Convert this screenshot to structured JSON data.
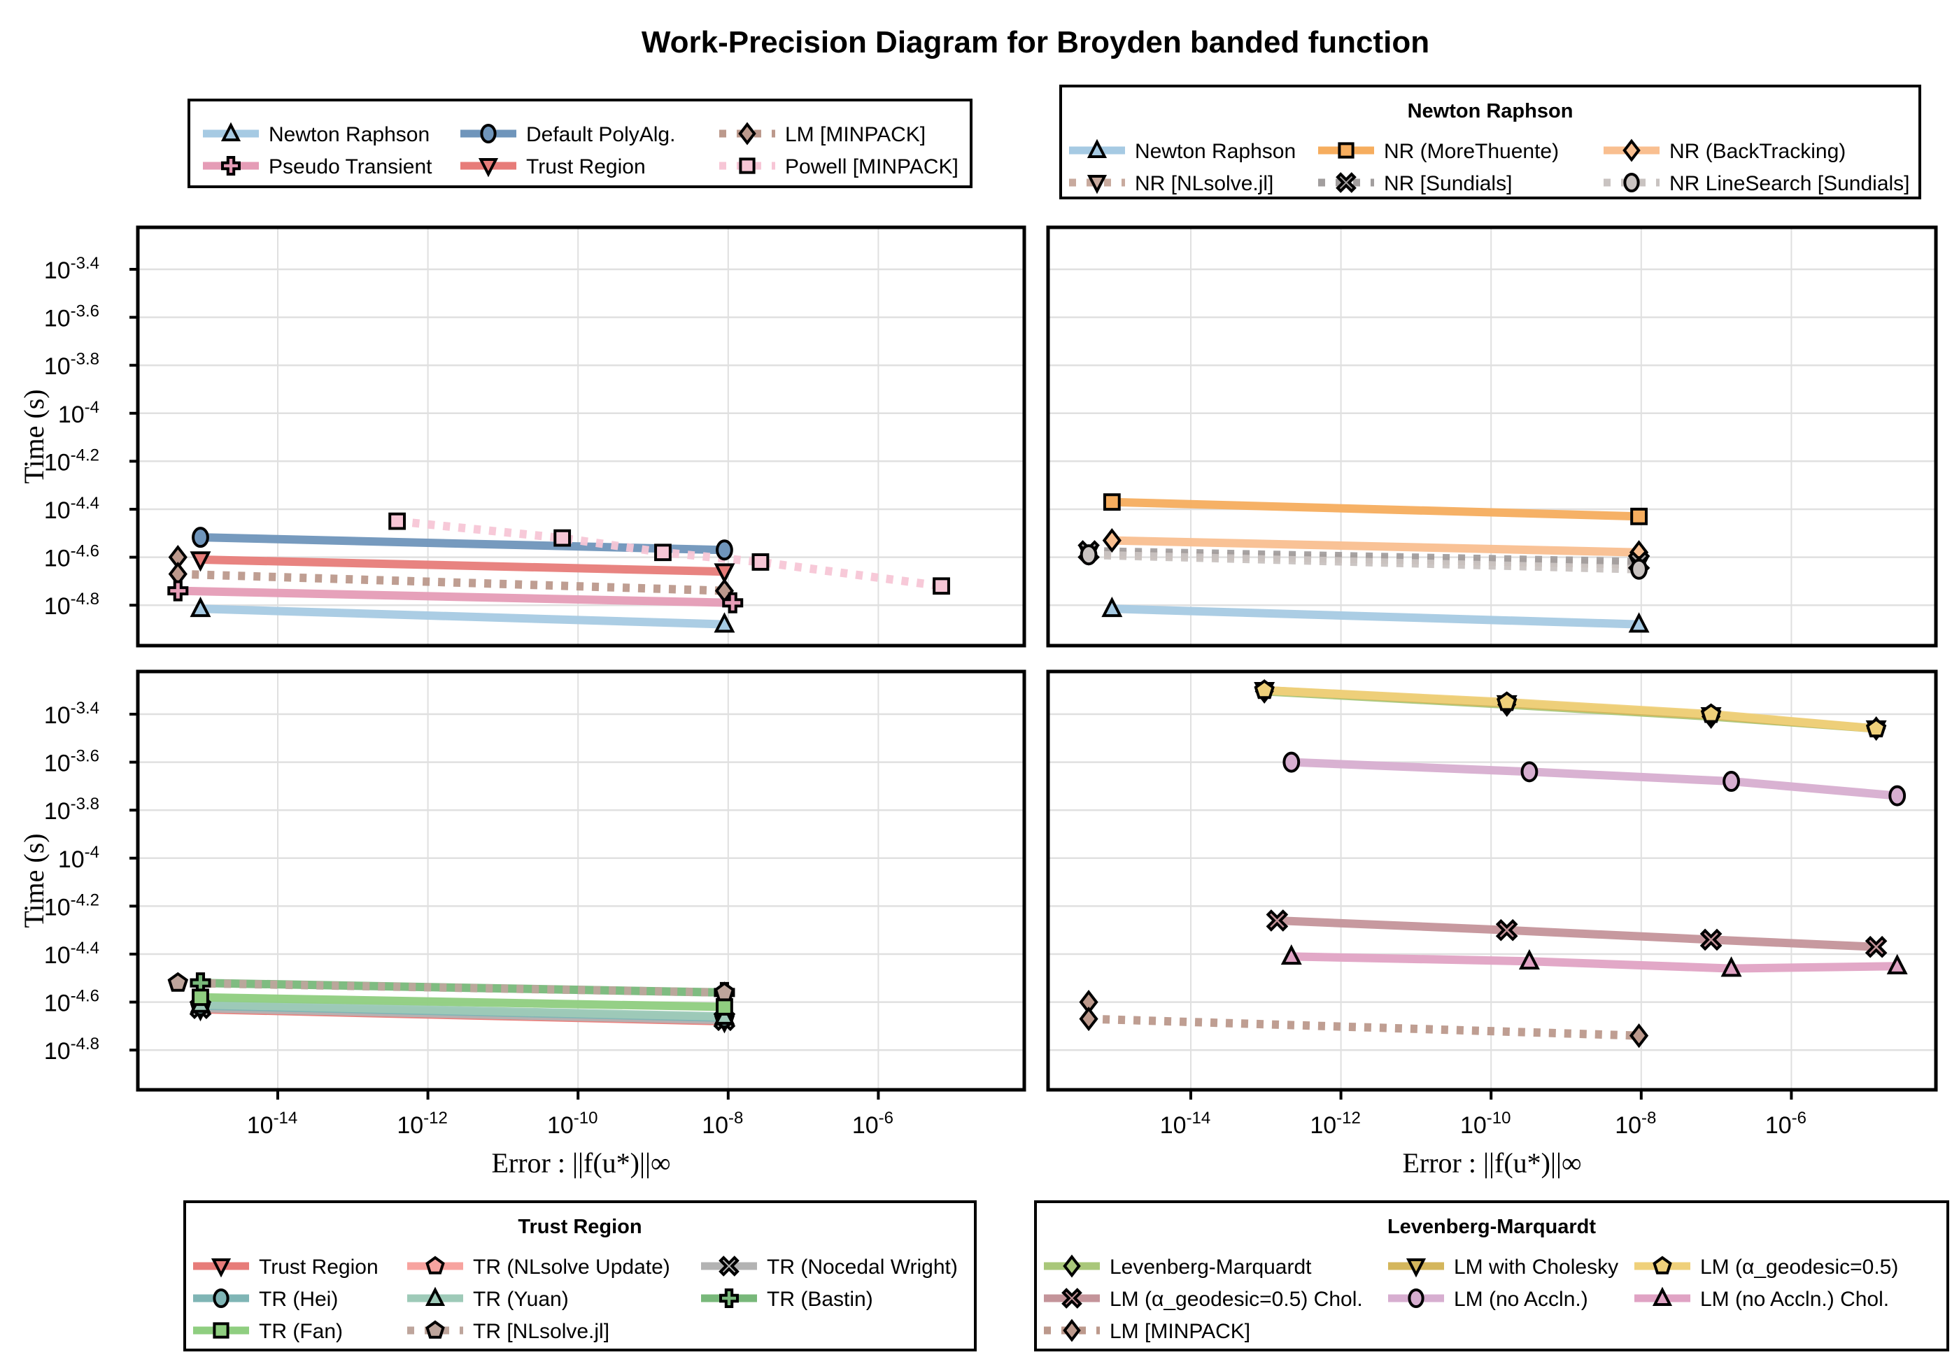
{
  "chart_data": {
    "type": "line",
    "title": "Work-Precision Diagram for Broyden banded function",
    "xscale": "log10",
    "yscale": "log10",
    "xlabel": "Error : ||f(u*)||∞",
    "ylabel": "Time (s)",
    "xticks": [
      -14,
      -12,
      -10,
      -8,
      -6
    ],
    "yticks": [
      -3.4,
      -3.6,
      -3.8,
      -4,
      -4.2,
      -4.4,
      -4.6,
      -4.8
    ],
    "xlim_log10": [
      -15.9,
      -4.07
    ],
    "ylim_log10": [
      -4.98,
      -3.22
    ],
    "grid": true,
    "panels": [
      {
        "id": "top-left",
        "legend": {
          "title": "",
          "position": "above",
          "columns": 3
        },
        "series": [
          {
            "name": "Newton Raphson",
            "color": "#a6cae3",
            "marker": "triangle-up",
            "dash": "solid",
            "x": [
              -15.03,
              -8.05
            ],
            "y": [
              -4.815,
              -4.88
            ]
          },
          {
            "name": "Default PolyAlg.",
            "color": "#6f95bb",
            "marker": "circle",
            "dash": "solid",
            "x": [
              -15.03,
              -8.05
            ],
            "y": [
              -4.517,
              -4.57
            ]
          },
          {
            "name": "LM [MINPACK]",
            "color": "#bc998c",
            "marker": "diamond",
            "dash": "dot",
            "x": [
              -15.33,
              -15.33,
              -8.05
            ],
            "y": [
              -4.6,
              -4.67,
              -4.74
            ]
          },
          {
            "name": "Pseudo Transient",
            "color": "#e59cb6",
            "marker": "cross",
            "dash": "solid",
            "x": [
              -15.33,
              -7.94
            ],
            "y": [
              -4.74,
              -4.79
            ]
          },
          {
            "name": "Trust Region",
            "color": "#e77c79",
            "marker": "triangle-down",
            "dash": "solid",
            "x": [
              -15.03,
              -8.05
            ],
            "y": [
              -4.61,
              -4.66
            ]
          },
          {
            "name": "Powell [MINPACK]",
            "color": "#f7c6d6",
            "marker": "square",
            "dash": "dot",
            "x": [
              -12.41,
              -10.21,
              -8.87,
              -7.57,
              -5.16
            ],
            "y": [
              -4.45,
              -4.52,
              -4.58,
              -4.62,
              -4.72
            ]
          }
        ]
      },
      {
        "id": "top-right",
        "legend": {
          "title": "Newton Raphson",
          "position": "above",
          "columns": 3
        },
        "series": [
          {
            "name": "Newton Raphson",
            "color": "#a6cae3",
            "marker": "triangle-up",
            "dash": "solid",
            "x": [
              -15.05,
              -8.03
            ],
            "y": [
              -4.815,
              -4.88
            ]
          },
          {
            "name": "NR (MoreThuente)",
            "color": "#f6ad5e",
            "marker": "square",
            "dash": "solid",
            "x": [
              -15.05,
              -8.03
            ],
            "y": [
              -4.37,
              -4.43
            ]
          },
          {
            "name": "NR (BackTracking)",
            "color": "#f9bf90",
            "marker": "diamond",
            "dash": "solid",
            "x": [
              -15.05,
              -8.03
            ],
            "y": [
              -4.53,
              -4.58
            ]
          },
          {
            "name": "NR [NLsolve.jl]",
            "color": "#c8aa9e",
            "marker": "triangle-down",
            "dash": "dot",
            "x": [
              -15.36,
              -8.03
            ],
            "y": [
              -4.585,
              -4.63
            ]
          },
          {
            "name": "NR [Sundials]",
            "color": "#a29e9e",
            "marker": "x-cross",
            "dash": "dot",
            "x": [
              -15.36,
              -8.03
            ],
            "y": [
              -4.575,
              -4.62
            ]
          },
          {
            "name": "NR LineSearch [Sundials]",
            "color": "#c9c3c1",
            "marker": "circle",
            "dash": "dot",
            "x": [
              -15.36,
              -8.03
            ],
            "y": [
              -4.59,
              -4.65
            ]
          }
        ]
      },
      {
        "id": "bottom-left",
        "legend": {
          "title": "Trust Region",
          "position": "below",
          "columns": 3
        },
        "series": [
          {
            "name": "Trust Region",
            "color": "#e77c79",
            "marker": "triangle-down",
            "dash": "solid",
            "x": [
              -15.03,
              -8.05
            ],
            "y": [
              -4.63,
              -4.68
            ]
          },
          {
            "name": "TR (NLsolve Update)",
            "color": "#f7a39f",
            "marker": "pentagon",
            "dash": "solid",
            "x": [
              -15.03,
              -8.05
            ],
            "y": [
              -4.62,
              -4.67
            ]
          },
          {
            "name": "TR (Nocedal Wright)",
            "color": "#b3b3b3",
            "marker": "x-cross",
            "dash": "solid",
            "x": [
              -15.03,
              -8.05
            ],
            "y": [
              -4.625,
              -4.675
            ]
          },
          {
            "name": "TR (Hei)",
            "color": "#7fb5b5",
            "marker": "circle",
            "dash": "solid",
            "x": [
              -15.03,
              -8.05
            ],
            "y": [
              -4.615,
              -4.665
            ]
          },
          {
            "name": "TR (Yuan)",
            "color": "#9ecab8",
            "marker": "triangle-up",
            "dash": "solid",
            "x": [
              -15.03,
              -8.05
            ],
            "y": [
              -4.61,
              -4.66
            ]
          },
          {
            "name": "TR (Bastin)",
            "color": "#78b87a",
            "marker": "cross",
            "dash": "solid",
            "x": [
              -15.03,
              -8.05
            ],
            "y": [
              -4.52,
              -4.56
            ]
          },
          {
            "name": "TR (Fan)",
            "color": "#8fce80",
            "marker": "square",
            "dash": "solid",
            "x": [
              -15.03,
              -8.05
            ],
            "y": [
              -4.58,
              -4.62
            ]
          },
          {
            "name": "TR [NLsolve.jl]",
            "color": "#bea59c",
            "marker": "pentagon",
            "dash": "dot",
            "x": [
              -15.33,
              -8.05
            ],
            "y": [
              -4.52,
              -4.56
            ]
          }
        ]
      },
      {
        "id": "bottom-right",
        "legend": {
          "title": "Levenberg-Marquardt",
          "position": "below",
          "columns": 3
        },
        "series": [
          {
            "name": "Levenberg-Marquardt",
            "color": "#a9c77a",
            "marker": "diamond",
            "dash": "solid",
            "x": [
              -13.02,
              -9.79,
              -7.07,
              -4.87
            ],
            "y": [
              -3.305,
              -3.36,
              -3.41,
              -3.46
            ]
          },
          {
            "name": "LM with Cholesky",
            "color": "#d4b65c",
            "marker": "triangle-down",
            "dash": "solid",
            "x": [
              -13.02,
              -9.79,
              -7.07,
              -4.87
            ],
            "y": [
              -3.3,
              -3.355,
              -3.405,
              -3.46
            ]
          },
          {
            "name": "LM (α_geodesic=0.5)",
            "color": "#efd07a",
            "marker": "pentagon",
            "dash": "solid",
            "x": [
              -13.02,
              -9.79,
              -7.07,
              -4.87
            ],
            "y": [
              -3.3,
              -3.35,
              -3.4,
              -3.46
            ]
          },
          {
            "name": "LM (α_geodesic=0.5) Chol.",
            "color": "#c4949a",
            "marker": "x-cross",
            "dash": "solid",
            "x": [
              -12.85,
              -9.79,
              -7.07,
              -4.87
            ],
            "y": [
              -4.26,
              -4.3,
              -4.34,
              -4.37
            ]
          },
          {
            "name": "LM (no Accln.)",
            "color": "#d7aed0",
            "marker": "circle",
            "dash": "solid",
            "x": [
              -12.66,
              -9.49,
              -6.8,
              -4.59
            ],
            "y": [
              -3.6,
              -3.64,
              -3.68,
              -3.74
            ]
          },
          {
            "name": "LM (no Accln.) Chol.",
            "color": "#e0a3c4",
            "marker": "triangle-up",
            "dash": "solid",
            "x": [
              -12.66,
              -9.49,
              -6.8,
              -4.59
            ],
            "y": [
              -4.41,
              -4.43,
              -4.46,
              -4.45
            ]
          },
          {
            "name": "LM [MINPACK]",
            "color": "#bc998c",
            "marker": "diamond",
            "dash": "dot",
            "x": [
              -15.36,
              -15.36,
              -8.03
            ],
            "y": [
              -4.6,
              -4.67,
              -4.74
            ]
          }
        ]
      }
    ]
  }
}
